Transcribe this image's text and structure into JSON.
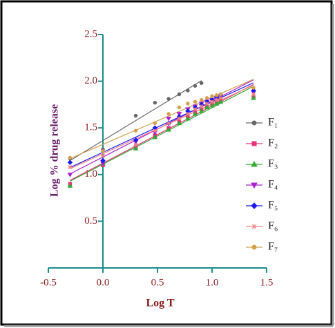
{
  "chart_data": {
    "type": "scatter",
    "trendline": true,
    "x_label": "Log T",
    "y_label": "Log % drug release",
    "xlim": [
      -0.5,
      1.5
    ],
    "ylim": [
      0,
      2.5
    ],
    "xticks": [
      -0.5,
      {
        "value": 0,
        "label": "0.0"
      },
      0.5,
      {
        "value": 1,
        "label": "1.0"
      },
      1.5
    ],
    "yticks": [
      0.5,
      {
        "value": 1,
        "label": "1.0"
      },
      1.5,
      {
        "value": 2,
        "label": "2.0"
      },
      2.5
    ],
    "x": [
      -0.301,
      0,
      0.301,
      0.477,
      0.602,
      0.699,
      0.778,
      0.845,
      0.903,
      0.954,
      1.0,
      1.041,
      1.079,
      1.38
    ],
    "series": [
      {
        "name": "F₁",
        "color": "#666666",
        "marker": "circle",
        "values": [
          1.17,
          1.27,
          1.63,
          1.77,
          1.81,
          1.86,
          1.9,
          1.95,
          1.98,
          null,
          null,
          null,
          null,
          null
        ]
      },
      {
        "name": "F₂",
        "color": "#e8327a",
        "marker": "square",
        "values": [
          0.9,
          1.1,
          1.3,
          1.42,
          1.5,
          1.57,
          1.62,
          1.67,
          1.7,
          1.73,
          1.76,
          1.78,
          1.8,
          1.83
        ]
      },
      {
        "name": "F₃",
        "color": "#33aa33",
        "marker": "triangle",
        "values": [
          0.88,
          1.12,
          1.28,
          1.4,
          1.48,
          1.55,
          1.6,
          1.65,
          1.68,
          1.72,
          1.74,
          1.76,
          1.78,
          1.82
        ]
      },
      {
        "name": "F₄",
        "color": "#aa22cc",
        "marker": "triangle-down",
        "values": [
          1.0,
          1.12,
          1.35,
          1.45,
          1.6,
          1.65,
          1.7,
          1.73,
          1.76,
          1.78,
          1.8,
          1.82,
          1.84,
          1.88
        ]
      },
      {
        "name": "F₅",
        "color": "#1a1aee",
        "marker": "diamond",
        "values": [
          1.13,
          1.15,
          1.37,
          1.5,
          1.55,
          1.62,
          1.68,
          1.72,
          1.75,
          1.78,
          1.8,
          1.82,
          1.84,
          1.9
        ]
      },
      {
        "name": "F₆",
        "color": "#f08080",
        "marker": "star",
        "values": [
          1.08,
          1.2,
          1.32,
          1.47,
          1.55,
          1.6,
          1.65,
          1.7,
          1.73,
          1.76,
          1.78,
          1.8,
          1.82,
          1.86
        ]
      },
      {
        "name": "F₇",
        "color": "#d4a050",
        "marker": "circle",
        "values": [
          1.18,
          1.25,
          1.47,
          1.55,
          1.65,
          1.72,
          1.76,
          1.78,
          1.8,
          1.82,
          1.84,
          1.85,
          1.86,
          1.93
        ]
      }
    ]
  }
}
